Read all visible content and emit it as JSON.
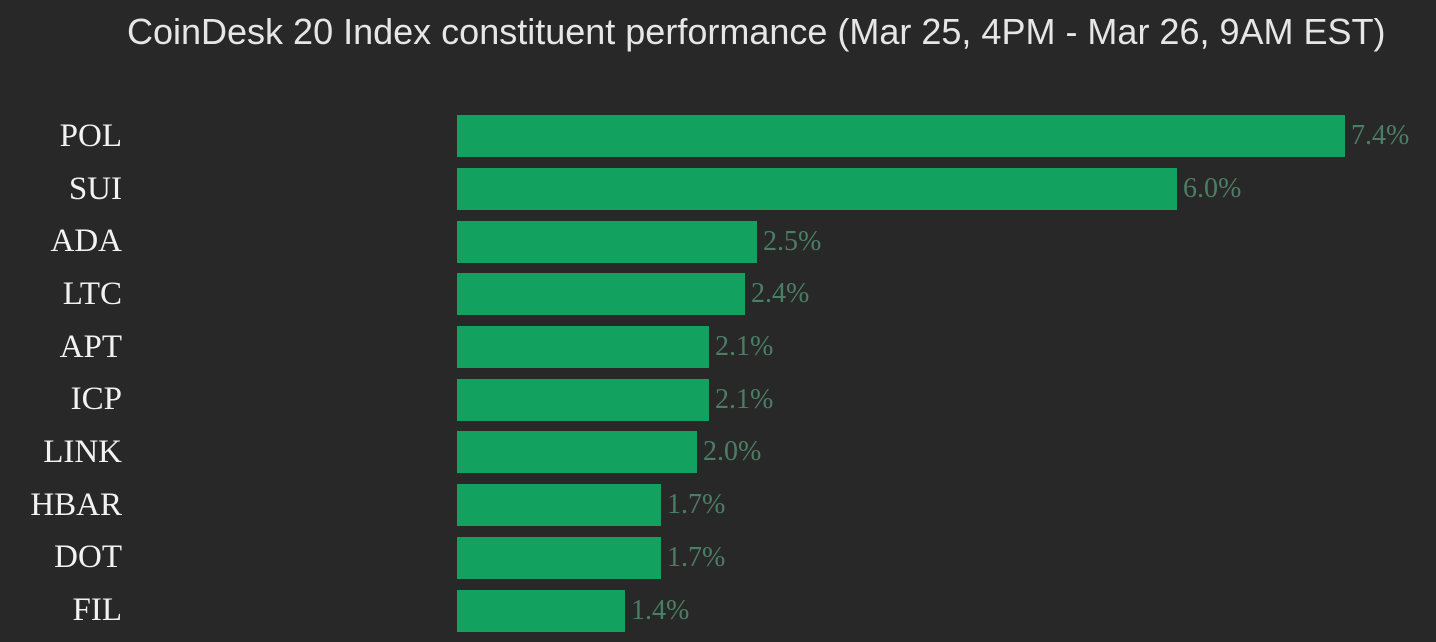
{
  "colors": {
    "background": "#282828",
    "bar": "#12a15f",
    "title_text": "#e6e6e6",
    "category_text": "#f2f2f2",
    "value_text": "#4b7f65"
  },
  "chart_data": {
    "type": "bar",
    "orientation": "horizontal",
    "title": "CoinDesk 20 Index constituent performance (Mar 25, 4PM - Mar 26, 9AM EST)",
    "categories": [
      "POL",
      "SUI",
      "ADA",
      "LTC",
      "APT",
      "ICP",
      "LINK",
      "HBAR",
      "DOT",
      "FIL"
    ],
    "values": [
      7.4,
      6.0,
      2.5,
      2.4,
      2.1,
      2.1,
      2.0,
      1.7,
      1.7,
      1.4
    ],
    "value_labels": [
      "7.4%",
      "6.0%",
      "2.5%",
      "2.4%",
      "2.1%",
      "2.1%",
      "2.0%",
      "1.7%",
      "1.7%",
      "1.4%"
    ],
    "xlabel": "",
    "ylabel": "",
    "xlim": [
      0,
      7.4
    ],
    "grid": false,
    "legend": "none",
    "bar_unit": "percent"
  }
}
